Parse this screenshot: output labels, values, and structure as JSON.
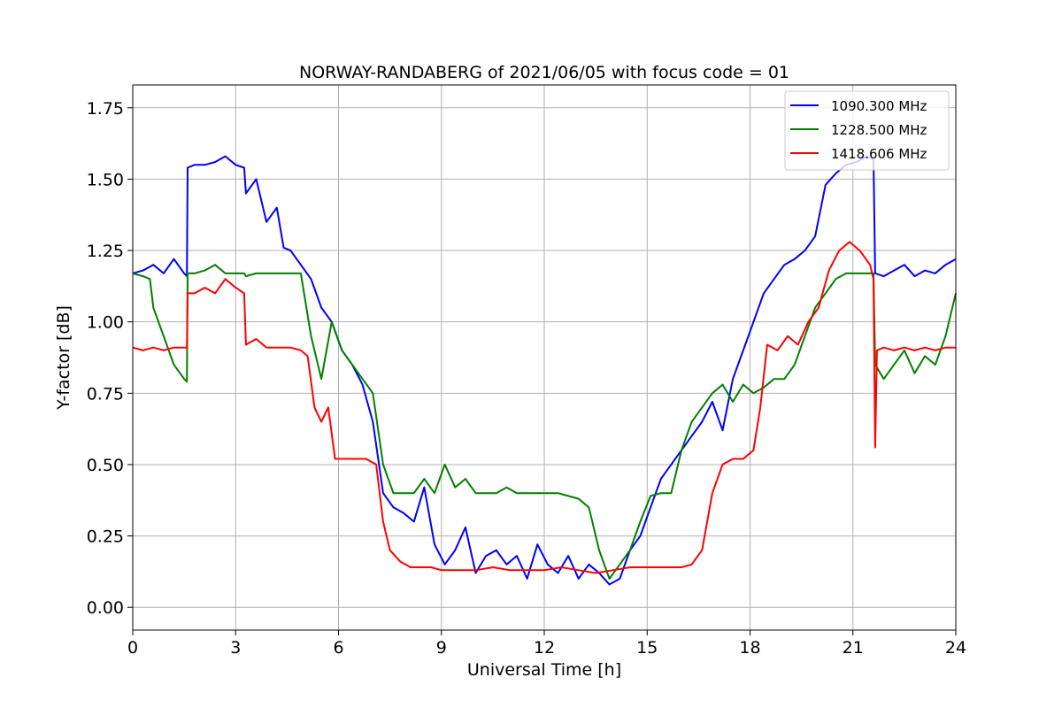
{
  "chart_data": {
    "type": "line",
    "title": "NORWAY-RANDABERG of 2021/06/05 with focus code = 01",
    "xlabel": "Universal Time [h]",
    "ylabel": "Y-factor [dB]",
    "xlim": [
      0,
      24
    ],
    "ylim": [
      -0.08,
      1.83
    ],
    "xticks": [
      0,
      3,
      6,
      9,
      12,
      15,
      18,
      21,
      24
    ],
    "yticks": [
      0.0,
      0.25,
      0.5,
      0.75,
      1.0,
      1.25,
      1.5,
      1.75
    ],
    "ytick_labels": [
      "0.00",
      "0.25",
      "0.50",
      "0.75",
      "1.00",
      "1.25",
      "1.50",
      "1.75"
    ],
    "grid": true,
    "legend_position": "top-right",
    "series": [
      {
        "name": "1090.300 MHz",
        "color": "#0000ff",
        "x": [
          0.0,
          0.3,
          0.6,
          0.9,
          1.2,
          1.5,
          1.58,
          1.6,
          1.8,
          2.1,
          2.4,
          2.7,
          3.0,
          3.25,
          3.3,
          3.6,
          3.9,
          4.2,
          4.4,
          4.6,
          4.9,
          5.2,
          5.5,
          5.8,
          6.1,
          6.4,
          6.7,
          7.0,
          7.3,
          7.6,
          7.9,
          8.2,
          8.5,
          8.8,
          9.1,
          9.4,
          9.7,
          10.0,
          10.3,
          10.6,
          10.9,
          11.2,
          11.5,
          11.8,
          12.1,
          12.4,
          12.7,
          13.0,
          13.3,
          13.6,
          13.9,
          14.2,
          14.5,
          14.8,
          15.1,
          15.4,
          15.7,
          16.0,
          16.3,
          16.6,
          16.9,
          17.2,
          17.5,
          17.8,
          18.1,
          18.4,
          18.7,
          19.0,
          19.3,
          19.6,
          19.9,
          20.2,
          20.5,
          20.8,
          21.1,
          21.4,
          21.6,
          21.65,
          21.9,
          22.2,
          22.5,
          22.8,
          23.1,
          23.4,
          23.7,
          24.0
        ],
        "values": [
          1.17,
          1.18,
          1.2,
          1.17,
          1.22,
          1.17,
          1.16,
          1.54,
          1.55,
          1.55,
          1.56,
          1.58,
          1.55,
          1.54,
          1.45,
          1.5,
          1.35,
          1.4,
          1.26,
          1.25,
          1.2,
          1.15,
          1.05,
          1.0,
          0.9,
          0.85,
          0.78,
          0.65,
          0.4,
          0.35,
          0.33,
          0.3,
          0.42,
          0.22,
          0.15,
          0.2,
          0.28,
          0.12,
          0.18,
          0.2,
          0.15,
          0.18,
          0.1,
          0.22,
          0.15,
          0.12,
          0.18,
          0.1,
          0.15,
          0.12,
          0.08,
          0.1,
          0.2,
          0.25,
          0.35,
          0.45,
          0.5,
          0.55,
          0.6,
          0.65,
          0.72,
          0.62,
          0.8,
          0.9,
          1.0,
          1.1,
          1.15,
          1.2,
          1.22,
          1.25,
          1.3,
          1.48,
          1.52,
          1.55,
          1.56,
          1.58,
          1.57,
          1.17,
          1.16,
          1.18,
          1.2,
          1.16,
          1.18,
          1.17,
          1.2,
          1.22
        ]
      },
      {
        "name": "1228.500 MHz",
        "color": "#008000",
        "x": [
          0.0,
          0.3,
          0.5,
          0.6,
          0.9,
          1.2,
          1.5,
          1.58,
          1.6,
          1.8,
          2.1,
          2.4,
          2.7,
          3.0,
          3.25,
          3.3,
          3.6,
          3.9,
          4.2,
          4.6,
          4.9,
          5.2,
          5.5,
          5.8,
          6.1,
          6.4,
          6.7,
          7.0,
          7.3,
          7.6,
          7.9,
          8.2,
          8.5,
          8.8,
          9.1,
          9.4,
          9.7,
          10.0,
          10.3,
          10.6,
          10.9,
          11.2,
          11.5,
          11.8,
          12.1,
          12.4,
          12.7,
          13.0,
          13.3,
          13.6,
          13.9,
          14.2,
          14.5,
          14.8,
          15.1,
          15.4,
          15.7,
          16.0,
          16.3,
          16.6,
          16.9,
          17.2,
          17.5,
          17.8,
          18.1,
          18.4,
          18.7,
          19.0,
          19.3,
          19.6,
          19.9,
          20.2,
          20.5,
          20.8,
          21.1,
          21.4,
          21.6,
          21.65,
          21.9,
          22.2,
          22.5,
          22.8,
          23.1,
          23.4,
          23.7,
          24.0
        ],
        "values": [
          1.17,
          1.16,
          1.15,
          1.05,
          0.95,
          0.85,
          0.8,
          0.79,
          1.17,
          1.17,
          1.18,
          1.2,
          1.17,
          1.17,
          1.17,
          1.16,
          1.17,
          1.17,
          1.17,
          1.17,
          1.17,
          0.95,
          0.8,
          1.0,
          0.9,
          0.85,
          0.8,
          0.75,
          0.5,
          0.4,
          0.4,
          0.4,
          0.45,
          0.4,
          0.5,
          0.42,
          0.45,
          0.4,
          0.4,
          0.4,
          0.42,
          0.4,
          0.4,
          0.4,
          0.4,
          0.4,
          0.39,
          0.38,
          0.35,
          0.2,
          0.1,
          0.15,
          0.2,
          0.3,
          0.39,
          0.4,
          0.4,
          0.55,
          0.65,
          0.7,
          0.75,
          0.78,
          0.72,
          0.78,
          0.75,
          0.77,
          0.8,
          0.8,
          0.85,
          0.95,
          1.05,
          1.1,
          1.15,
          1.17,
          1.17,
          1.17,
          1.17,
          0.85,
          0.8,
          0.85,
          0.9,
          0.82,
          0.88,
          0.85,
          0.95,
          1.1
        ]
      },
      {
        "name": "1418.606 MHz",
        "color": "#ff0000",
        "x": [
          0.0,
          0.3,
          0.6,
          0.9,
          1.2,
          1.5,
          1.58,
          1.6,
          1.8,
          2.1,
          2.4,
          2.7,
          3.0,
          3.25,
          3.3,
          3.6,
          3.9,
          4.2,
          4.6,
          4.9,
          5.1,
          5.3,
          5.5,
          5.7,
          5.9,
          6.2,
          6.5,
          6.8,
          7.1,
          7.3,
          7.5,
          7.8,
          8.1,
          8.4,
          8.7,
          9.0,
          9.5,
          10.0,
          10.5,
          11.0,
          11.5,
          12.0,
          12.5,
          13.0,
          13.5,
          14.0,
          14.5,
          15.0,
          15.5,
          16.0,
          16.3,
          16.6,
          16.9,
          17.2,
          17.5,
          17.8,
          18.1,
          18.3,
          18.5,
          18.8,
          19.1,
          19.4,
          19.7,
          20.0,
          20.3,
          20.6,
          20.9,
          21.2,
          21.5,
          21.6,
          21.65,
          21.7,
          21.9,
          22.2,
          22.5,
          22.8,
          23.1,
          23.4,
          23.7,
          24.0
        ],
        "values": [
          0.91,
          0.9,
          0.91,
          0.9,
          0.91,
          0.91,
          0.91,
          1.1,
          1.1,
          1.12,
          1.1,
          1.15,
          1.12,
          1.1,
          0.92,
          0.94,
          0.91,
          0.91,
          0.91,
          0.9,
          0.88,
          0.7,
          0.65,
          0.7,
          0.52,
          0.52,
          0.52,
          0.52,
          0.5,
          0.3,
          0.2,
          0.16,
          0.14,
          0.14,
          0.14,
          0.13,
          0.13,
          0.13,
          0.14,
          0.13,
          0.13,
          0.13,
          0.14,
          0.13,
          0.12,
          0.13,
          0.14,
          0.14,
          0.14,
          0.14,
          0.15,
          0.2,
          0.4,
          0.5,
          0.52,
          0.52,
          0.55,
          0.7,
          0.92,
          0.9,
          0.95,
          0.92,
          1.0,
          1.05,
          1.18,
          1.25,
          1.28,
          1.25,
          1.2,
          1.15,
          0.56,
          0.9,
          0.91,
          0.9,
          0.91,
          0.9,
          0.91,
          0.9,
          0.91,
          0.91
        ]
      }
    ]
  }
}
